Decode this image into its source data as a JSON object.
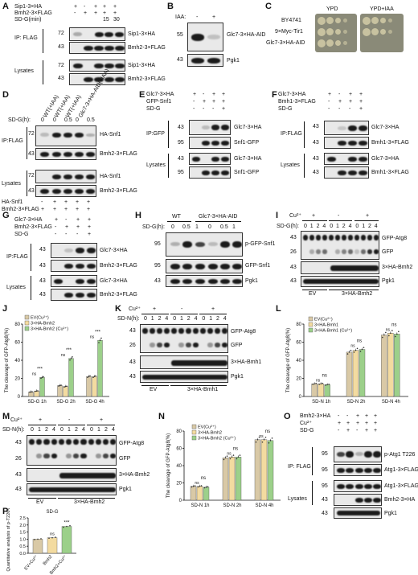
{
  "panels": {
    "A": {
      "letter": "A",
      "rows": [
        {
          "label": "Sip1-3×HA",
          "signs": [
            "+",
            "-",
            "+",
            "+",
            "+"
          ]
        },
        {
          "label": "Bmh2-3×FLAG",
          "signs": [
            "-",
            "+",
            "+",
            "+",
            "+"
          ]
        },
        {
          "label": "SD-G(min)",
          "signs": [
            "",
            "",
            "",
            "15",
            "30"
          ]
        }
      ],
      "blot_labels": [
        "Sip1-3×HA",
        "Bmh2-3×FLAG",
        "Sip1-3×HA",
        "Bmh2-3×FLAG"
      ],
      "section_labels": [
        "IP: FLAG",
        "Lysates"
      ],
      "mw": [
        "72",
        "43",
        "72",
        "43"
      ]
    },
    "B": {
      "letter": "B",
      "iaa_label": "IAA:",
      "signs": [
        "-",
        "+"
      ],
      "blot_labels": [
        "Glc7-3×HA-AID",
        "Pgk1"
      ],
      "mw": [
        "55",
        "43"
      ]
    },
    "C": {
      "letter": "C",
      "plates": [
        "YPD",
        "YPD+IAA"
      ],
      "strains": [
        "BY4741",
        "9×Myc-Tir1",
        "Glc7-3×HA-AID"
      ]
    },
    "D": {
      "letter": "D",
      "col_labels": [
        "WT(+IAA)",
        "WT(+IAA)",
        "WT(+IAA)",
        "Glc7-3×HA-AID(+IAA)"
      ],
      "sdg_label": "SD-G(h):",
      "sdg_vals": [
        "0",
        "0",
        "0.5",
        "0",
        "0.5"
      ],
      "blot_labels": [
        "HA-Snf1",
        "Bmh2-3×FLAG",
        "HA-Snf1",
        "Bmh2-3×FLAG"
      ],
      "section_labels": [
        "IP:FLAG",
        "Lysates"
      ],
      "mw": [
        "72",
        "43",
        "72",
        "43"
      ],
      "bottom_rows": [
        {
          "label": "HA-Snf1",
          "signs": [
            "-",
            "+",
            "+",
            "+",
            "+"
          ]
        },
        {
          "label": "Bmh2-3×FLAG",
          "signs": [
            "+",
            "+",
            "+",
            "+",
            "+"
          ]
        }
      ]
    },
    "E": {
      "letter": "E",
      "rows": [
        {
          "label": "Glc7-3×HA",
          "signs": [
            "+",
            "-",
            "+",
            "+"
          ]
        },
        {
          "label": "GFP-Snf1",
          "signs": [
            "-",
            "+",
            "+",
            "+"
          ]
        },
        {
          "label": "SD-G",
          "signs": [
            "-",
            "-",
            "-",
            "+"
          ]
        }
      ],
      "blot_labels": [
        "Glc7-3×HA",
        "Snf1-GFP",
        "Glc7-3×HA",
        "Snf1-GFP"
      ],
      "section_labels": [
        "IP:GFP",
        "Lysates"
      ],
      "mw": [
        "43",
        "95",
        "43",
        "95"
      ]
    },
    "F": {
      "letter": "F",
      "rows": [
        {
          "label": "Glc7-3×HA",
          "signs": [
            "+",
            "-",
            "+",
            "+"
          ]
        },
        {
          "label": "Bmh1-3×FLAG",
          "signs": [
            "-",
            "+",
            "+",
            "+"
          ]
        },
        {
          "label": "SD-G",
          "signs": [
            "-",
            "-",
            "-",
            "+"
          ]
        }
      ],
      "blot_labels": [
        "Glc7-3×HA",
        "Bmh1-3×FLAG",
        "Glc7-3×HA",
        "Bmh1-3×FLAG"
      ],
      "section_labels": [
        "IP:FLAG",
        "Lysates"
      ],
      "mw": [
        "43",
        "43",
        "43",
        "43"
      ]
    },
    "G": {
      "letter": "G",
      "rows": [
        {
          "label": "Glc7-3×HA",
          "signs": [
            "+",
            "-",
            "+",
            "+"
          ]
        },
        {
          "label": "Bmh2-3×FLAG",
          "signs": [
            "-",
            "+",
            "+",
            "+"
          ]
        },
        {
          "label": "SD-G",
          "signs": [
            "-",
            "-",
            "-",
            "+"
          ]
        }
      ],
      "blot_labels": [
        "Glc7-3×HA",
        "Bmh2-3×FLAG",
        "Glc7-3×HA",
        "Bmh2-3×FLAG"
      ],
      "section_labels": [
        "IP:FLAG",
        "Lysates"
      ],
      "mw": [
        "43",
        "43",
        "43",
        "43"
      ]
    },
    "H": {
      "letter": "H",
      "groups": [
        "WT",
        "Glc7-3×HA-AID"
      ],
      "sdg_label": "SD-G(h):",
      "sdg_vals": [
        "0",
        "0.5",
        "1",
        "0",
        "0.5",
        "1"
      ],
      "blot_labels": [
        "p-GFP-Snf1",
        "GFP-Snf1",
        "Pgk1"
      ],
      "mw": [
        "95",
        "95",
        "43"
      ]
    },
    "I": {
      "letter": "I",
      "cu_label": "Cu²⁺",
      "cu_signs": [
        "+",
        "-",
        "+"
      ],
      "sdg_label": "SD-G(h):",
      "time_vals": [
        "0",
        "1",
        "2",
        "4",
        "0",
        "1",
        "2",
        "4",
        "0",
        "1",
        "2",
        "4"
      ],
      "blot_labels": [
        "GFP-Atg8",
        "GFP",
        "3×HA-Bmh2",
        "Pgk1"
      ],
      "mw": [
        "43",
        "26",
        "43",
        "43"
      ],
      "groups": [
        "EV",
        "3×HA-Bmh2"
      ]
    },
    "K": {
      "letter": "K",
      "cu_label": "Cu²⁺",
      "cu_signs": [
        "+",
        "-",
        "+"
      ],
      "sdn_label": "SD-N(h):",
      "time_vals": [
        "0",
        "1",
        "2",
        "4",
        "0",
        "1",
        "2",
        "4",
        "0",
        "1",
        "2",
        "4"
      ],
      "blot_labels": [
        "GFP-Atg8",
        "GFP",
        "3×HA-Bmh1",
        "Pgk1"
      ],
      "mw": [
        "43",
        "26",
        "43",
        "43"
      ],
      "groups": [
        "EV",
        "3×HA-Bmh1"
      ]
    },
    "M": {
      "letter": "M",
      "cu_label": "Cu²⁺",
      "cu_signs": [
        "+",
        "-",
        "+"
      ],
      "sdn_label": "SD-N(h):",
      "time_vals": [
        "0",
        "1",
        "2",
        "4",
        "0",
        "1",
        "2",
        "4",
        "0",
        "1",
        "2",
        "4"
      ],
      "blot_labels": [
        "GFP-Atg8",
        "GFP",
        "3×HA-Bmh2",
        "Pgk1"
      ],
      "mw": [
        "43",
        "26",
        "43",
        "43"
      ],
      "groups": [
        "EV",
        "3×HA-Bmh2"
      ]
    },
    "O": {
      "letter": "O",
      "rows": [
        {
          "label": "Bmh2-3×HA",
          "signs": [
            "-",
            "-",
            "+",
            "+",
            "+"
          ]
        },
        {
          "label": "Cu²⁺",
          "signs": [
            "+",
            "+",
            "+",
            "+",
            "+"
          ]
        },
        {
          "label": "SD-G",
          "signs": [
            "-",
            "+",
            "-",
            "+",
            "+"
          ]
        }
      ],
      "blot_labels": [
        "p-Atg1 T226",
        "Atg1-3×FLAG",
        "Atg1-3×FLAG",
        "Bmh2-3×HA",
        "Pgk1"
      ],
      "section_labels": [
        "IP: FLAG",
        "Lysates"
      ],
      "mw": [
        "95",
        "95",
        "95",
        "43",
        "43"
      ]
    }
  },
  "chart_data": [
    {
      "panel": "J",
      "type": "bar",
      "ylabel": "The cleavage of GFP-Atg8(%)",
      "ylim": [
        0,
        80
      ],
      "yticks": [
        "0",
        "20",
        "40",
        "60",
        "80"
      ],
      "categories": [
        "SD-G 1h",
        "SD-G 2h",
        "SD-G 4h"
      ],
      "series": [
        {
          "name": "EV(Cu²⁺)",
          "values": [
            5,
            12,
            22
          ],
          "color": "#d9c9a6"
        },
        {
          "name": "3×HA-Bmh2",
          "values": [
            6,
            11,
            22
          ],
          "color": "#f3dba0"
        },
        {
          "name": "3×HA-Bmh2 (Cu²⁺)",
          "values": [
            21,
            42,
            62
          ],
          "color": "#9cd08a"
        }
      ],
      "significance": [
        [
          "***",
          "ns"
        ],
        [
          "***",
          "ns"
        ],
        [
          "***",
          "ns"
        ]
      ]
    },
    {
      "panel": "L",
      "type": "bar",
      "ylabel": "The cleavage of GFP-Atg8(%)",
      "ylim": [
        0,
        80
      ],
      "yticks": [
        "0",
        "20",
        "40",
        "60",
        "80"
      ],
      "categories": [
        "SD-N 1h",
        "SD-N 2h",
        "SD-N 4h"
      ],
      "series": [
        {
          "name": "EV(Cu²⁺)",
          "values": [
            14,
            49,
            68
          ],
          "color": "#d9c9a6"
        },
        {
          "name": "3×HA-Bmh1",
          "values": [
            14,
            51,
            70
          ],
          "color": "#f3dba0"
        },
        {
          "name": "3×HA-Bmh1 (Cu²⁺)",
          "values": [
            13,
            52,
            69
          ],
          "color": "#9cd08a"
        }
      ],
      "significance": [
        [
          "ns",
          "ns"
        ],
        [
          "ns",
          "ns"
        ],
        [
          "ns",
          "ns"
        ]
      ]
    },
    {
      "panel": "N",
      "type": "bar",
      "ylabel": "The cleavage of GFP-Atg8(%)",
      "ylim": [
        0,
        80
      ],
      "yticks": [
        "0",
        "20",
        "40",
        "60",
        "80"
      ],
      "categories": [
        "SD-N 1h",
        "SD-N 2h",
        "SD-N 4h"
      ],
      "series": [
        {
          "name": "EV(Cu²⁺)",
          "values": [
            16,
            49,
            70
          ],
          "color": "#d9c9a6"
        },
        {
          "name": "3×HA-Bmh2",
          "values": [
            16,
            50,
            70
          ],
          "color": "#f3dba0"
        },
        {
          "name": "3×HA-Bmh2 (Cu²⁺)",
          "values": [
            15,
            50,
            69
          ],
          "color": "#9cd08a"
        }
      ],
      "significance": [
        [
          "ns",
          "ns"
        ],
        [
          "ns",
          "ns"
        ],
        [
          "ns",
          "ns"
        ]
      ]
    },
    {
      "panel": "P",
      "type": "bar",
      "title": "SD-G",
      "ylabel": "Quantitative analysis of p-T226-Atg1",
      "ylim": [
        0,
        2.5
      ],
      "yticks": [
        "0.0",
        "0.5",
        "1.0",
        "1.5",
        "2.0",
        "2.5"
      ],
      "categories": [
        "EV+Cu²⁺",
        "Bmh2",
        "Bmh2+Cu²⁺"
      ],
      "values": [
        1.0,
        1.1,
        1.9
      ],
      "colors": [
        "#d9c9a6",
        "#f3dba0",
        "#9cd08a"
      ],
      "significance": [
        "ns",
        "***"
      ]
    }
  ]
}
